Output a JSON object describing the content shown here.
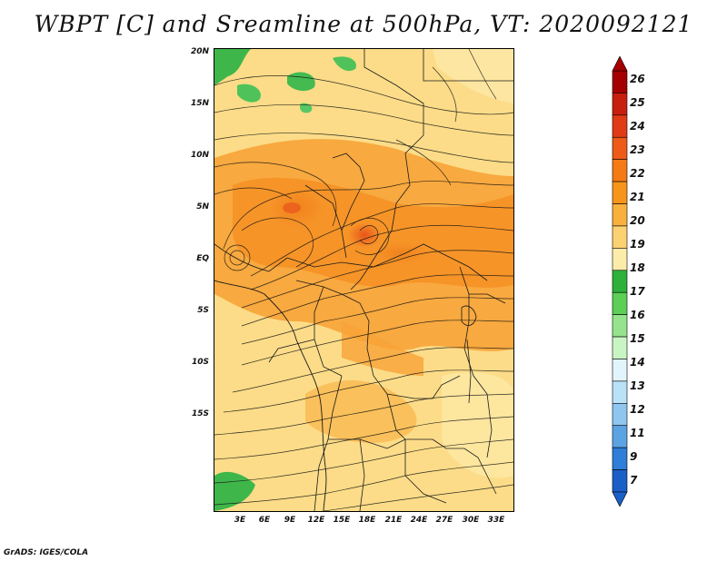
{
  "title": "WBPT [C] and Sreamline at 500hPa, VT: 2020092121",
  "footer": "GrADS: IGES/COLA",
  "y_axis": {
    "labels": [
      "20N",
      "15N",
      "10N",
      "5N",
      "EQ",
      "5S",
      "10S",
      "15S"
    ]
  },
  "x_axis": {
    "labels": [
      "3E",
      "6E",
      "9E",
      "12E",
      "15E",
      "18E",
      "21E",
      "24E",
      "27E",
      "30E",
      "33E"
    ]
  },
  "colorbar": {
    "labels": [
      "26",
      "25",
      "24",
      "23",
      "22",
      "21",
      "20",
      "19",
      "18",
      "17",
      "16",
      "15",
      "14",
      "13",
      "12",
      "11",
      "9",
      "7"
    ],
    "colors": [
      "#a50000",
      "#c81e0e",
      "#e03a16",
      "#ee5a18",
      "#f47a16",
      "#f7951a",
      "#f9b03d",
      "#fbd171",
      "#fcecaa",
      "#2db13a",
      "#5ccf56",
      "#95e48d",
      "#c9f5c4",
      "#e2f5fc",
      "#b9e1f7",
      "#8ec6ef",
      "#5ba3e3",
      "#2f7ed8",
      "#1a5fc7"
    ]
  }
}
